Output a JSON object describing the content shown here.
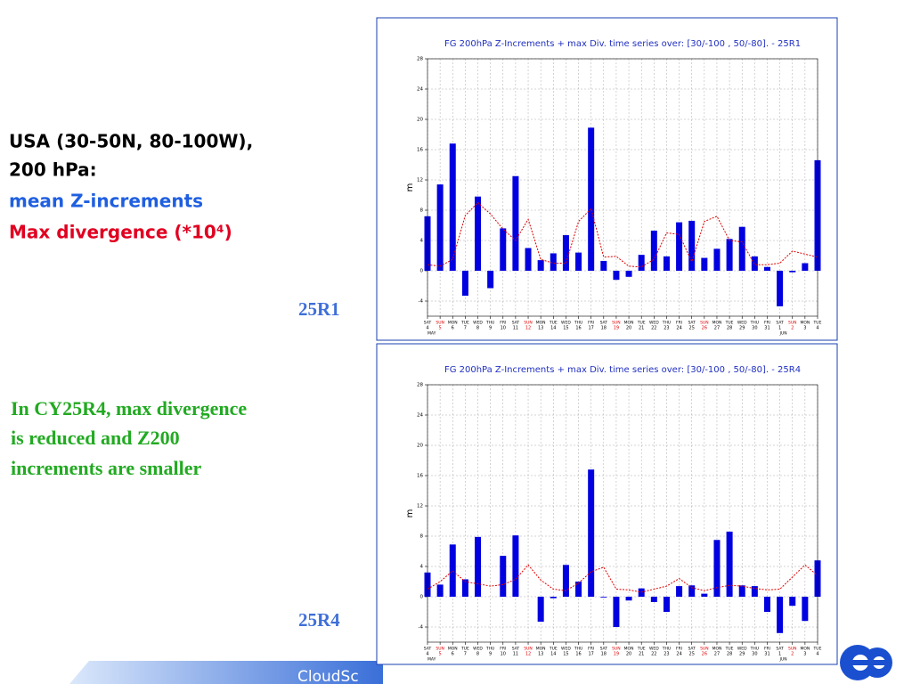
{
  "slide": {
    "heading": [
      "USA (30-50N, 80-100W),",
      "200 hPa:"
    ],
    "legend_blue": "mean Z-increments",
    "legend_red": "Max divergence (*10⁴)",
    "label_top": "25R1",
    "label_bottom": "25R4",
    "notes": [
      "In CY25R4, max divergence",
      "is reduced and Z200",
      "increments are smaller"
    ],
    "footer": "CloudSc"
  },
  "chart_data": [
    {
      "type": "bar-line",
      "title": "FG 200hPa Z-Increments + max Div. time series over: [30/-100 , 50/-80]. - 25R1",
      "y_label": "m",
      "categories": [
        "4",
        "5",
        "6",
        "7",
        "8",
        "9",
        "10",
        "11",
        "12",
        "13",
        "14",
        "15",
        "16",
        "17",
        "18",
        "19",
        "20",
        "21",
        "22",
        "23",
        "24",
        "25",
        "26",
        "27",
        "28",
        "29",
        "30",
        "31",
        "1",
        "2",
        "3",
        "4"
      ],
      "weekdays": [
        "SAT",
        "SUN",
        "MON",
        "TUE",
        "WED",
        "THU",
        "FRI",
        "SAT",
        "SUN",
        "MON",
        "TUE",
        "WED",
        "THU",
        "FRI",
        "SAT",
        "SUN",
        "MON",
        "TUE",
        "WED",
        "THU",
        "FRI",
        "SAT",
        "SUN",
        "MON",
        "TUE",
        "WED",
        "THU",
        "FRI",
        "SAT",
        "SUN",
        "MON",
        "TUE"
      ],
      "months": [
        "MAY",
        null,
        null,
        null,
        null,
        null,
        null,
        null,
        null,
        null,
        null,
        null,
        null,
        null,
        null,
        null,
        null,
        null,
        null,
        null,
        null,
        null,
        null,
        null,
        null,
        null,
        null,
        null,
        "JUN",
        null,
        null,
        null
      ],
      "x_label_colors": [
        "#000",
        "#e00000",
        "#000",
        "#000",
        "#000",
        "#000",
        "#000",
        "#000",
        "#e00000",
        "#000",
        "#000",
        "#000",
        "#000",
        "#000",
        "#000",
        "#e00000",
        "#000",
        "#000",
        "#000",
        "#000",
        "#000",
        "#000",
        "#e00000",
        "#000",
        "#000",
        "#000",
        "#000",
        "#000",
        "#000",
        "#e00000",
        "#000",
        "#000"
      ],
      "series": [
        {
          "kind": "bar",
          "color": "#0000e0",
          "values": [
            7.2,
            11.4,
            16.8,
            -3.3,
            9.8,
            -2.3,
            5.6,
            12.5,
            3.0,
            1.4,
            2.3,
            4.7,
            2.4,
            18.9,
            1.3,
            -1.2,
            -0.8,
            2.1,
            5.3,
            1.9,
            6.4,
            6.6,
            1.7,
            2.9,
            4.2,
            5.8,
            1.9,
            0.5,
            -4.7,
            -0.2,
            1.0,
            14.6
          ]
        },
        {
          "kind": "line",
          "color": "#e00000",
          "values": [
            0.8,
            0.6,
            1.5,
            7.3,
            9.0,
            7.5,
            5.5,
            4.0,
            6.8,
            1.5,
            1.0,
            1.0,
            6.5,
            8.2,
            1.8,
            1.9,
            0.6,
            0.5,
            1.5,
            5.0,
            4.8,
            1.2,
            6.5,
            7.2,
            4.0,
            3.8,
            0.8,
            0.8,
            1.0,
            2.6,
            2.2,
            1.8
          ]
        }
      ],
      "ylim": [
        -6,
        28
      ],
      "yticks": [
        -4,
        0,
        4,
        8,
        12,
        16,
        20,
        24,
        28
      ],
      "grid": true
    },
    {
      "type": "bar-line",
      "title": "FG 200hPa Z-Increments + max Div. time series over: [30/-100 , 50/-80]. - 25R4",
      "y_label": "m",
      "categories": [
        "4",
        "5",
        "6",
        "7",
        "8",
        "9",
        "10",
        "11",
        "12",
        "13",
        "14",
        "15",
        "16",
        "17",
        "18",
        "19",
        "20",
        "21",
        "22",
        "23",
        "24",
        "25",
        "26",
        "27",
        "28",
        "29",
        "30",
        "31",
        "1",
        "2",
        "3",
        "4"
      ],
      "weekdays": [
        "SAT",
        "SUN",
        "MON",
        "TUE",
        "WED",
        "THU",
        "FRI",
        "SAT",
        "SUN",
        "MON",
        "TUE",
        "WED",
        "THU",
        "FRI",
        "SAT",
        "SUN",
        "MON",
        "TUE",
        "WED",
        "THU",
        "FRI",
        "SAT",
        "SUN",
        "MON",
        "TUE",
        "WED",
        "THU",
        "FRI",
        "SAT",
        "SUN",
        "MON",
        "TUE"
      ],
      "months": [
        "MAY",
        null,
        null,
        null,
        null,
        null,
        null,
        null,
        null,
        null,
        null,
        null,
        null,
        null,
        null,
        null,
        null,
        null,
        null,
        null,
        null,
        null,
        null,
        null,
        null,
        null,
        null,
        null,
        "JUN",
        null,
        null,
        null
      ],
      "x_label_colors": [
        "#000",
        "#e00000",
        "#000",
        "#000",
        "#000",
        "#000",
        "#000",
        "#000",
        "#e00000",
        "#000",
        "#000",
        "#000",
        "#000",
        "#000",
        "#000",
        "#e00000",
        "#000",
        "#000",
        "#000",
        "#000",
        "#000",
        "#000",
        "#e00000",
        "#000",
        "#000",
        "#000",
        "#000",
        "#000",
        "#000",
        "#e00000",
        "#000",
        "#000"
      ],
      "series": [
        {
          "kind": "bar",
          "color": "#0000e0",
          "values": [
            3.2,
            1.6,
            6.9,
            2.3,
            7.9,
            0,
            5.4,
            8.1,
            0,
            -3.3,
            -0.2,
            4.2,
            2.0,
            16.8,
            -0.1,
            -4.0,
            -0.5,
            1.1,
            -0.7,
            -2.0,
            1.4,
            1.5,
            0.4,
            7.5,
            8.6,
            1.5,
            1.4,
            -2.0,
            -4.8,
            -1.2,
            -3.2,
            4.8
          ]
        },
        {
          "kind": "line",
          "color": "#e00000",
          "values": [
            1.0,
            2.0,
            3.4,
            2.0,
            1.7,
            1.4,
            1.6,
            2.3,
            4.2,
            2.2,
            1.0,
            0.8,
            1.8,
            3.3,
            3.9,
            1.0,
            0.9,
            0.6,
            1.0,
            1.4,
            2.4,
            1.2,
            0.8,
            1.2,
            1.5,
            1.4,
            1.1,
            0.9,
            1.0,
            2.6,
            4.2,
            2.8
          ]
        }
      ],
      "ylim": [
        -6,
        28
      ],
      "yticks": [
        -4,
        0,
        4,
        8,
        12,
        16,
        20,
        24,
        28
      ],
      "grid": true
    }
  ]
}
